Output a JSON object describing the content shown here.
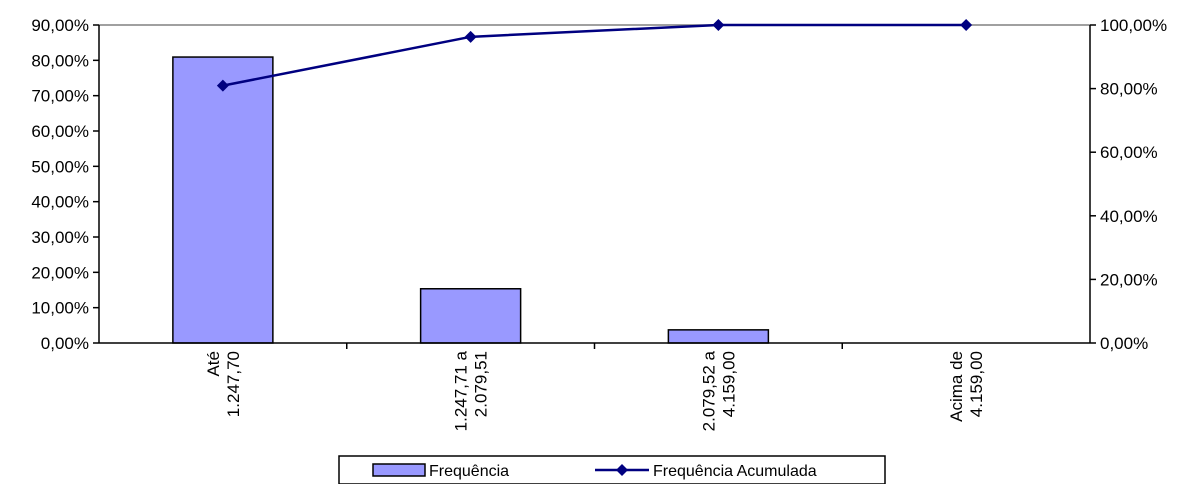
{
  "chart_data": {
    "type": "bar",
    "title": "",
    "xlabel": "",
    "ylabel": "",
    "categories": [
      [
        "Até",
        "1.247,70"
      ],
      [
        "1.247,71 a",
        "2.079,51"
      ],
      [
        "2.079,52 a",
        "4.159,00"
      ],
      [
        "Acima de",
        "4.159,00"
      ]
    ],
    "series": [
      {
        "name": "Frequência",
        "type": "bar",
        "axis": "left",
        "values": [
          80.93,
          15.35,
          3.72,
          0.0
        ],
        "color": "#9999ff"
      },
      {
        "name": "Frequência Acumulada",
        "type": "line",
        "axis": "right",
        "values": [
          80.93,
          96.28,
          100.0,
          100.0
        ],
        "color": "#000080"
      }
    ],
    "y_left": {
      "ylim": [
        0,
        90
      ],
      "ticks": [
        0,
        10,
        20,
        30,
        40,
        50,
        60,
        70,
        80,
        90
      ],
      "tick_labels": [
        "0,00%",
        "10,00%",
        "20,00%",
        "30,00%",
        "40,00%",
        "50,00%",
        "60,00%",
        "70,00%",
        "80,00%",
        "90,00%"
      ]
    },
    "y_right": {
      "ylim": [
        0,
        100
      ],
      "ticks": [
        0,
        20,
        40,
        60,
        80,
        100
      ],
      "tick_labels": [
        "0,00%",
        "20,00%",
        "40,00%",
        "60,00%",
        "80,00%",
        "100,00%"
      ]
    },
    "grid": false,
    "legend": {
      "placement": "bottom",
      "entries": [
        "Frequência",
        "Frequência Acumulada"
      ]
    }
  }
}
